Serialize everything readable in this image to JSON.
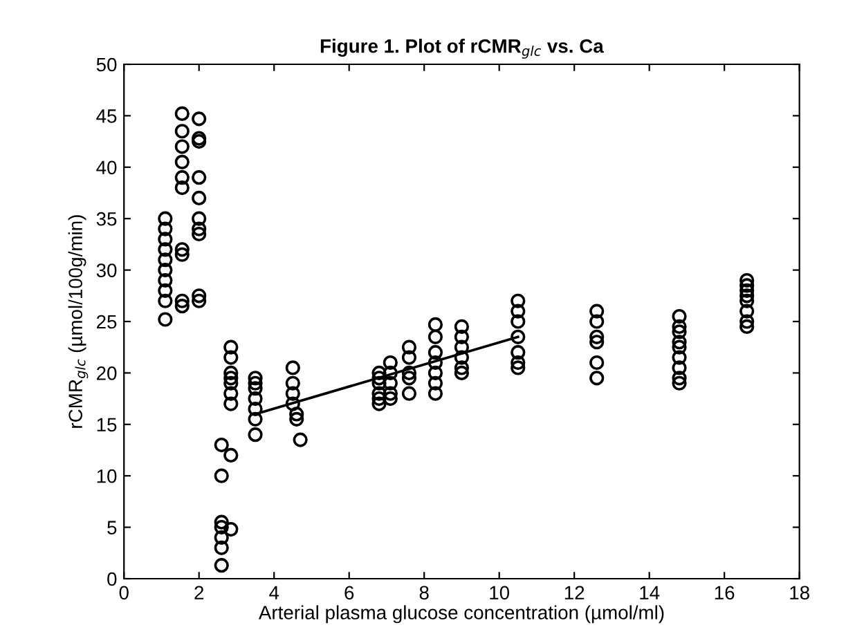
{
  "chart_data": {
    "type": "scatter",
    "title": "Figure 1. Plot of rCMR$_{glc}$ vs. Ca",
    "xlabel": "Arterial plasma glucose concentration (µmol/ml)",
    "ylabel": "rCMR$_{glc}$ (µmol/100g/min)",
    "xlim": [
      0,
      18
    ],
    "ylim": [
      0,
      50
    ],
    "xticks": [
      0,
      2,
      4,
      6,
      8,
      10,
      12,
      14,
      16,
      18
    ],
    "yticks": [
      0,
      5,
      10,
      15,
      20,
      25,
      30,
      35,
      40,
      45,
      50
    ],
    "grid": false,
    "legend": false,
    "marker": "circle",
    "series": [
      {
        "color": "#000000",
        "x": [
          1.1,
          1.1,
          1.1,
          1.1,
          1.1,
          1.1,
          1.1,
          1.1,
          1.1,
          1.1,
          1.55,
          1.55,
          1.55,
          1.55,
          1.55,
          1.55,
          1.55,
          1.55,
          1.55,
          1.55,
          2.0,
          2.0,
          2.0,
          2.0,
          2.0,
          2.0,
          2.0,
          2.0,
          2.0,
          2.0,
          2.6,
          2.6,
          2.6,
          2.6,
          2.6,
          2.6,
          2.6,
          2.85,
          2.85,
          2.85,
          2.85,
          2.85,
          2.85,
          2.85,
          2.85,
          2.85,
          3.5,
          3.5,
          3.5,
          3.5,
          3.5,
          3.5,
          3.5,
          4.5,
          4.5,
          4.5,
          4.5,
          4.6,
          4.6,
          4.7,
          6.8,
          6.8,
          6.8,
          6.8,
          6.8,
          6.8,
          7.1,
          7.1,
          7.1,
          7.1,
          7.1,
          7.6,
          7.6,
          7.6,
          7.6,
          7.6,
          8.3,
          8.3,
          8.3,
          8.3,
          8.3,
          8.3,
          8.3,
          9.0,
          9.0,
          9.0,
          9.0,
          9.0,
          9.0,
          10.5,
          10.5,
          10.5,
          10.5,
          10.5,
          10.5,
          10.5,
          12.6,
          12.6,
          12.6,
          12.6,
          12.6,
          12.6,
          14.8,
          14.8,
          14.8,
          14.8,
          14.8,
          14.8,
          14.8,
          14.8,
          14.8,
          16.6,
          16.6,
          16.6,
          16.6,
          16.6,
          16.6,
          16.6,
          16.6
        ],
        "values": [
          25.2,
          27,
          28,
          29,
          30,
          31,
          32,
          33,
          34,
          35,
          45.2,
          43.5,
          42,
          40.5,
          39,
          38,
          32,
          31.5,
          27,
          26.5,
          44.7,
          42.8,
          42.5,
          39,
          37,
          35,
          34,
          33.5,
          27.5,
          27,
          13,
          10,
          5.5,
          5,
          4,
          3,
          1.3,
          12,
          4.8,
          22.5,
          21.5,
          20,
          19.5,
          19,
          18,
          17,
          19.5,
          19,
          18.5,
          17.5,
          16.5,
          15.5,
          14,
          20.5,
          19,
          18,
          17,
          16,
          15.5,
          13.5,
          20,
          19.5,
          19,
          18,
          17.5,
          17,
          21,
          20,
          19,
          18,
          17.5,
          22.5,
          21.5,
          20,
          19.5,
          18,
          24.7,
          23.5,
          22,
          21,
          20,
          19,
          18,
          24.5,
          23.5,
          22.5,
          21.5,
          20.5,
          20,
          27,
          26,
          25,
          23.5,
          22,
          21,
          20.5,
          26,
          25,
          23.5,
          23,
          21,
          19.5,
          25.5,
          24.5,
          24,
          23,
          22.5,
          21.5,
          20.5,
          19.5,
          19,
          29,
          28.5,
          28,
          27.5,
          27,
          26,
          25,
          24.5
        ]
      },
      {
        "type": "line",
        "color": "#000000",
        "x": [
          3.5,
          10.5
        ],
        "values": [
          16,
          23.5
        ],
        "marker": "none"
      }
    ]
  }
}
